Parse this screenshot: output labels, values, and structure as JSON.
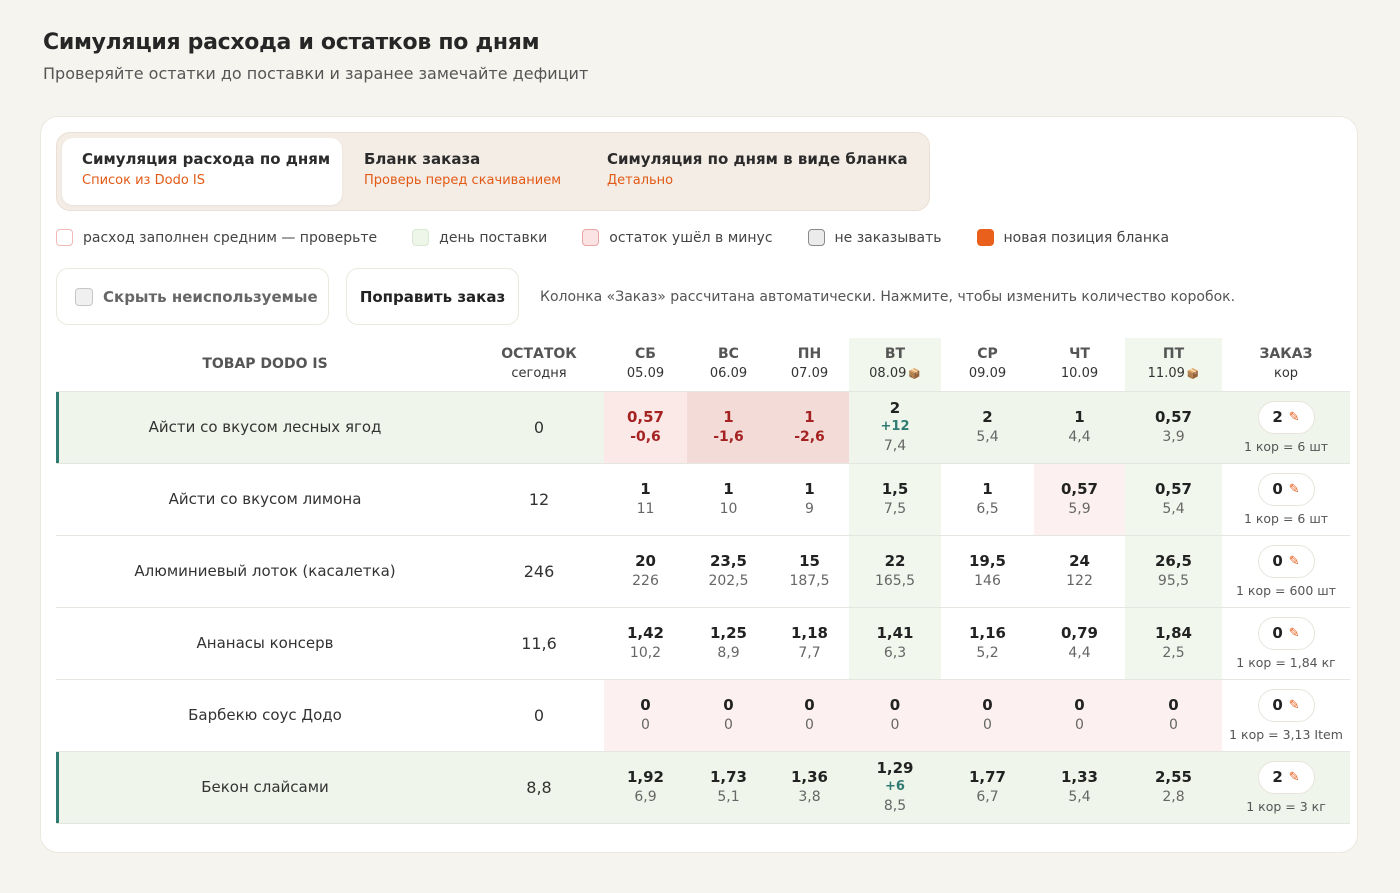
{
  "header": {
    "title": "Симуляция расхода и остатков по дням",
    "subtitle": "Проверяйте остатки до поставки и заранее замечайте дефицит"
  },
  "tabs": [
    {
      "title": "Симуляция расхода по дням",
      "sub": "Список из Dodo IS",
      "active": true
    },
    {
      "title": "Бланк заказа",
      "sub": "Проверь перед скачиванием",
      "active": false
    },
    {
      "title": "Симуляция по дням в виде бланка",
      "sub": "Детально",
      "active": false
    }
  ],
  "legend": [
    {
      "label": "расход заполнен средним — проверьте",
      "fill": "#ffffff",
      "border": "#f1b8b8"
    },
    {
      "label": "день поставки",
      "fill": "#eef6ea",
      "border": "#d9e8d2"
    },
    {
      "label": "остаток ушёл в минус",
      "fill": "#fbe3e3",
      "border": "#e9a4a4"
    },
    {
      "label": "не заказывать",
      "fill": "#ebebeb",
      "border": "#8a8a8a"
    },
    {
      "label": "новая позиция бланка",
      "fill": "#e8601c",
      "border": "#e8601c"
    }
  ],
  "controls": {
    "hide_unused": "Скрыть неиспользуемые",
    "fix_order": "Поправить заказ",
    "hint": "Колонка «Заказ» рассчитана автоматически. Нажмите, чтобы изменить количество коробок."
  },
  "columns": {
    "product": "ТОВАР DODO IS",
    "stock": "ОСТАТОК",
    "stock_sub": "сегодня",
    "days": [
      {
        "day": "СБ",
        "date": "05.09",
        "delivery": false
      },
      {
        "day": "ВС",
        "date": "06.09",
        "delivery": false
      },
      {
        "day": "ПН",
        "date": "07.09",
        "delivery": false
      },
      {
        "day": "ВТ",
        "date": "08.09",
        "delivery": true
      },
      {
        "day": "СР",
        "date": "09.09",
        "delivery": false
      },
      {
        "day": "ЧТ",
        "date": "10.09",
        "delivery": false
      },
      {
        "day": "ПТ",
        "date": "11.09",
        "delivery": true
      }
    ],
    "order": "ЗАКАЗ",
    "order_sub": "кор",
    "delivery_icon": "package-icon"
  },
  "rows": [
    {
      "name": "Айсти со вкусом лесных ягод",
      "stock": "0",
      "new": true,
      "cells": [
        {
          "main": "0,57",
          "rest": "-0,6",
          "neg": true,
          "bg": "neg-bg"
        },
        {
          "main": "1",
          "rest": "-1,6",
          "neg": true,
          "bg": "neg-strong"
        },
        {
          "main": "1",
          "rest": "-2,6",
          "neg": true,
          "bg": "neg-strong"
        },
        {
          "main": "2",
          "delta": "+12",
          "rest": "7,4"
        },
        {
          "main": "2",
          "rest": "5,4"
        },
        {
          "main": "1",
          "rest": "4,4"
        },
        {
          "main": "0,57",
          "rest": "3,9"
        }
      ],
      "order": "2",
      "box": "1 кор = 6 шт"
    },
    {
      "name": "Айсти со вкусом лимона",
      "stock": "12",
      "new": false,
      "cells": [
        {
          "main": "1",
          "rest": "11"
        },
        {
          "main": "1",
          "rest": "10"
        },
        {
          "main": "1",
          "rest": "9"
        },
        {
          "main": "1,5",
          "rest": "7,5"
        },
        {
          "main": "1",
          "rest": "6,5"
        },
        {
          "main": "0,57",
          "rest": "5,9",
          "bg": "neg-bg"
        },
        {
          "main": "0,57",
          "rest": "5,4"
        }
      ],
      "order": "0",
      "box": "1 кор = 6 шт"
    },
    {
      "name": "Алюминиевый лоток (касалетка)",
      "stock": "246",
      "new": false,
      "cells": [
        {
          "main": "20",
          "rest": "226"
        },
        {
          "main": "23,5",
          "rest": "202,5"
        },
        {
          "main": "15",
          "rest": "187,5"
        },
        {
          "main": "22",
          "rest": "165,5"
        },
        {
          "main": "19,5",
          "rest": "146"
        },
        {
          "main": "24",
          "rest": "122"
        },
        {
          "main": "26,5",
          "rest": "95,5"
        }
      ],
      "order": "0",
      "box": "1 кор = 600 шт"
    },
    {
      "name": "Ананасы консерв",
      "stock": "11,6",
      "new": false,
      "cells": [
        {
          "main": "1,42",
          "rest": "10,2"
        },
        {
          "main": "1,25",
          "rest": "8,9"
        },
        {
          "main": "1,18",
          "rest": "7,7"
        },
        {
          "main": "1,41",
          "rest": "6,3"
        },
        {
          "main": "1,16",
          "rest": "5,2"
        },
        {
          "main": "0,79",
          "rest": "4,4"
        },
        {
          "main": "1,84",
          "rest": "2,5"
        }
      ],
      "order": "0",
      "box": "1 кор = 1,84 кг"
    },
    {
      "name": "Барбекю соус Додо",
      "stock": "0",
      "new": false,
      "cells": [
        {
          "main": "0",
          "rest": "0",
          "bg": "neg-bg"
        },
        {
          "main": "0",
          "rest": "0",
          "bg": "neg-bg"
        },
        {
          "main": "0",
          "rest": "0",
          "bg": "neg-bg"
        },
        {
          "main": "0",
          "rest": "0",
          "bg": "neg-bg"
        },
        {
          "main": "0",
          "rest": "0",
          "bg": "neg-bg"
        },
        {
          "main": "0",
          "rest": "0",
          "bg": "neg-bg"
        },
        {
          "main": "0",
          "rest": "0",
          "bg": "neg-bg"
        }
      ],
      "order": "0",
      "box": "1 кор = 3,13 Item"
    },
    {
      "name": "Бекон слайсами",
      "stock": "8,8",
      "new": true,
      "cells": [
        {
          "main": "1,92",
          "rest": "6,9"
        },
        {
          "main": "1,73",
          "rest": "5,1"
        },
        {
          "main": "1,36",
          "rest": "3,8"
        },
        {
          "main": "1,29",
          "delta": "+6",
          "rest": "8,5"
        },
        {
          "main": "1,77",
          "rest": "6,7"
        },
        {
          "main": "1,33",
          "rest": "5,4"
        },
        {
          "main": "2,55",
          "rest": "2,8"
        }
      ],
      "order": "2",
      "box": "1 кор = 3 кг"
    }
  ]
}
